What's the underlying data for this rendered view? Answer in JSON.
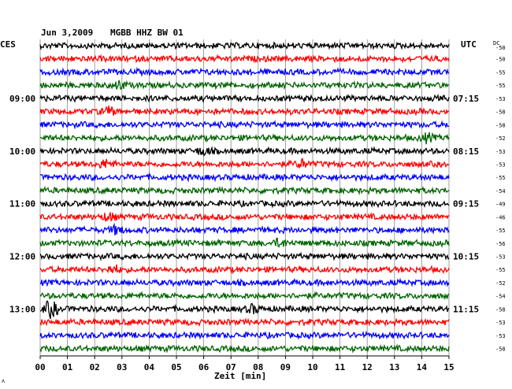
{
  "header": {
    "date": "Jun 3,2009",
    "station": "MGBB HHZ BW 01",
    "left_tz": "CES",
    "right_tz": "UTC",
    "dc_label": "DC",
    "corner_mark": "ʌ"
  },
  "chart_data": {
    "type": "line",
    "title": "Jun 3,2009   MGBB HHZ BW 01",
    "xlabel": "Zeit [min]",
    "xlim": [
      0,
      15
    ],
    "x_ticks": [
      "00",
      "01",
      "02",
      "03",
      "04",
      "05",
      "06",
      "07",
      "08",
      "09",
      "10",
      "11",
      "12",
      "13",
      "14",
      "15"
    ],
    "grid": "vertical every minute",
    "left_time_labels": [
      {
        "row": 4,
        "text": "09:00"
      },
      {
        "row": 8,
        "text": "10:00"
      },
      {
        "row": 12,
        "text": "11:00"
      },
      {
        "row": 16,
        "text": "12:00"
      },
      {
        "row": 20,
        "text": "13:00"
      }
    ],
    "right_time_labels": [
      {
        "row": 4,
        "text": "07:15"
      },
      {
        "row": 8,
        "text": "08:15"
      },
      {
        "row": 12,
        "text": "09:15"
      },
      {
        "row": 16,
        "text": "10:15"
      },
      {
        "row": 20,
        "text": "11:15"
      }
    ],
    "colors": [
      "#000000",
      "#ff0000",
      "#0000ff",
      "#006400"
    ],
    "series": [
      {
        "color": "#000000",
        "dc": "-50"
      },
      {
        "color": "#ff0000",
        "dc": "-50"
      },
      {
        "color": "#0000ff",
        "dc": "-55"
      },
      {
        "color": "#006400",
        "dc": "-55"
      },
      {
        "color": "#000000",
        "dc": "-53"
      },
      {
        "color": "#ff0000",
        "dc": "-58"
      },
      {
        "color": "#0000ff",
        "dc": "-58"
      },
      {
        "color": "#006400",
        "dc": "-52"
      },
      {
        "color": "#000000",
        "dc": "-53"
      },
      {
        "color": "#ff0000",
        "dc": "-53"
      },
      {
        "color": "#0000ff",
        "dc": "-55"
      },
      {
        "color": "#006400",
        "dc": "-54"
      },
      {
        "color": "#000000",
        "dc": "-49"
      },
      {
        "color": "#ff0000",
        "dc": "-46"
      },
      {
        "color": "#0000ff",
        "dc": "-55"
      },
      {
        "color": "#006400",
        "dc": "-56"
      },
      {
        "color": "#000000",
        "dc": "-53"
      },
      {
        "color": "#ff0000",
        "dc": "-55"
      },
      {
        "color": "#0000ff",
        "dc": "-52"
      },
      {
        "color": "#006400",
        "dc": "-54"
      },
      {
        "color": "#000000",
        "dc": "-58"
      },
      {
        "color": "#ff0000",
        "dc": "-53"
      },
      {
        "color": "#0000ff",
        "dc": "-53"
      },
      {
        "color": "#006400",
        "dc": "-58"
      }
    ],
    "events": [
      {
        "row": 3,
        "minute": 2.9
      },
      {
        "row": 5,
        "minute": 2.5
      },
      {
        "row": 7,
        "minute": 14.2
      },
      {
        "row": 8,
        "minute": 6.0
      },
      {
        "row": 9,
        "minute": 2.4
      },
      {
        "row": 9,
        "minute": 9.6
      },
      {
        "row": 13,
        "minute": 2.5
      },
      {
        "row": 14,
        "minute": 2.8
      },
      {
        "row": 15,
        "minute": 8.8
      },
      {
        "row": 17,
        "minute": 2.7
      },
      {
        "row": 20,
        "minute": 0.4
      },
      {
        "row": 20,
        "minute": 7.8
      }
    ]
  }
}
